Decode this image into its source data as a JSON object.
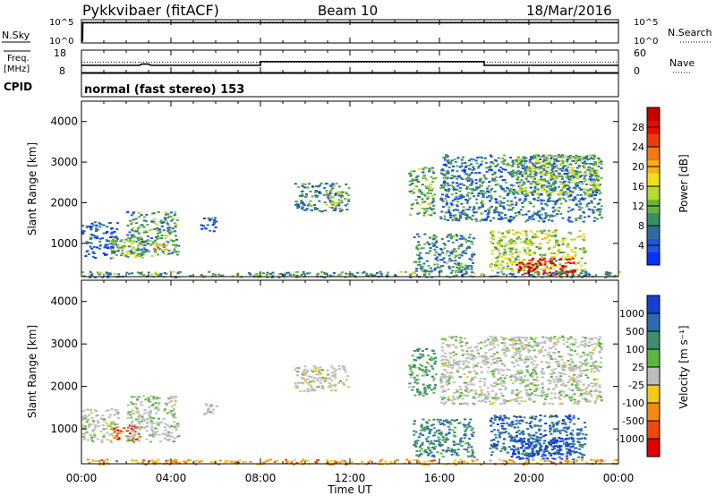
{
  "header": {
    "station": "Pykkvibaer (fitACF)",
    "beam": "Beam 10",
    "date": "18/Mar/2016"
  },
  "strip_labels": {
    "nsky": "N.Sky",
    "nsearch": "N.Search",
    "freq_line1": "Freq.",
    "freq_line2": "[MHz]",
    "nave": "Nave",
    "cpid": "CPID",
    "cpid_value": "normal (fast stereo) 153"
  },
  "noise_axis": {
    "left_ticks": [
      "10^5",
      "10^0"
    ],
    "right_ticks": [
      "10^5",
      "10^0"
    ]
  },
  "freq_axis": {
    "left_ticks": [
      "18",
      "8"
    ],
    "right_ticks": [
      "60",
      "0"
    ]
  },
  "chart_data": [
    {
      "type": "line",
      "name": "noise",
      "series": [
        {
          "name": "N.Sky",
          "style": "solid",
          "x_hours": [
            0,
            0.05,
            0.06,
            24
          ],
          "y_log10": [
            0,
            0,
            4.7,
            4.7
          ]
        },
        {
          "name": "N.Search",
          "style": "dotted",
          "x_hours": [
            0,
            24
          ],
          "y_log10": [
            4.6,
            4.6
          ]
        }
      ]
    },
    {
      "type": "line",
      "name": "frequency",
      "series": [
        {
          "name": "Freq",
          "unit": "MHz",
          "x_hours": [
            0,
            2.6,
            2.7,
            3.0,
            3.1,
            8.0,
            8.0,
            18.0,
            18.0,
            24
          ],
          "y": [
            10.5,
            10.5,
            11.2,
            11.2,
            10.5,
            10.5,
            12.6,
            12.6,
            10.5,
            10.5
          ]
        },
        {
          "name": "Nave",
          "style": "dotted",
          "x_hours": [
            0,
            24
          ],
          "y": [
            28,
            28
          ]
        }
      ]
    },
    {
      "type": "heatmap",
      "name": "power",
      "ylabel": "Slant Range [km]",
      "ylim": [
        180,
        4500
      ],
      "yticks": [
        "1000",
        "2000",
        "3000",
        "4000"
      ],
      "xticks": [
        "00:00",
        "04:00",
        "08:00",
        "12:00",
        "16:00",
        "20:00",
        "00:00"
      ],
      "colorbar": {
        "label": "Power [dB]",
        "ticks": [
          "4",
          "8",
          "12",
          "16",
          "20",
          "24",
          "28"
        ],
        "colors": [
          "#0033ff",
          "#2255dd",
          "#2f6e9a",
          "#3c9060",
          "#68b43c",
          "#b8d832",
          "#f0e020",
          "#f5b018",
          "#f07a14",
          "#ea3c0c",
          "#e01000",
          "#c80000"
        ]
      },
      "regions": [
        {
          "t": [
            0.0,
            1.6
          ],
          "r": [
            650,
            1550
          ],
          "level": 0.15
        },
        {
          "t": [
            1.3,
            2.8
          ],
          "r": [
            650,
            1150
          ],
          "level": 0.45
        },
        {
          "t": [
            2.0,
            4.3
          ],
          "r": [
            700,
            1800
          ],
          "level": 0.3
        },
        {
          "t": [
            3.2,
            3.9
          ],
          "r": [
            800,
            1000
          ],
          "level": 0.6
        },
        {
          "t": [
            5.3,
            6.0
          ],
          "r": [
            1300,
            1650
          ],
          "level": 0.12
        },
        {
          "t": [
            9.5,
            11.9
          ],
          "r": [
            1800,
            2500
          ],
          "level": 0.25
        },
        {
          "t": [
            10.8,
            11.6
          ],
          "r": [
            1900,
            2300
          ],
          "level": 0.5
        },
        {
          "t": [
            14.6,
            15.8
          ],
          "r": [
            1700,
            2900
          ],
          "level": 0.35
        },
        {
          "t": [
            14.8,
            17.5
          ],
          "r": [
            300,
            1250
          ],
          "level": 0.25
        },
        {
          "t": [
            16.0,
            23.2
          ],
          "r": [
            1550,
            3200
          ],
          "level": 0.22
        },
        {
          "t": [
            19.2,
            23.1
          ],
          "r": [
            2200,
            3200
          ],
          "level": 0.4
        },
        {
          "t": [
            18.2,
            22.5
          ],
          "r": [
            300,
            1350
          ],
          "level": 0.45
        },
        {
          "t": [
            19.4,
            22.0
          ],
          "r": [
            250,
            650
          ],
          "level": 0.95
        },
        {
          "t": [
            0.0,
            24.0
          ],
          "r": [
            180,
            320
          ],
          "level": 0.3
        }
      ]
    },
    {
      "type": "heatmap",
      "name": "velocity",
      "ylabel": "Slant Range [km]",
      "ylim": [
        180,
        4500
      ],
      "yticks": [
        "1000",
        "2000",
        "3000",
        "4000"
      ],
      "xticks": [
        "00:00",
        "04:00",
        "08:00",
        "12:00",
        "16:00",
        "20:00",
        "00:00"
      ],
      "xlabel": "Time UT",
      "colorbar": {
        "label": "Velocity [m s⁻¹]",
        "ticks": [
          "1000",
          "500",
          "100",
          "25",
          "-25",
          "-100",
          "-500",
          "-1000"
        ],
        "colors": [
          "#1a3fd0",
          "#2a6cb0",
          "#3d8e6a",
          "#5ab840",
          "#bdbdbd",
          "#f2c81a",
          "#f28a14",
          "#ea4a0c",
          "#e00000"
        ]
      },
      "regions": [
        {
          "t": [
            0.0,
            1.6
          ],
          "r": [
            700,
            1500
          ],
          "v": 0.0
        },
        {
          "t": [
            1.4,
            2.6
          ],
          "r": [
            700,
            1100
          ],
          "v": -0.7
        },
        {
          "t": [
            2.0,
            4.3
          ],
          "r": [
            700,
            1800
          ],
          "v": 0.05
        },
        {
          "t": [
            5.3,
            6.0
          ],
          "r": [
            1350,
            1650
          ],
          "v": 0.0
        },
        {
          "t": [
            9.5,
            11.9
          ],
          "r": [
            1900,
            2500
          ],
          "v": 0.0
        },
        {
          "t": [
            14.6,
            15.8
          ],
          "r": [
            1800,
            2900
          ],
          "v": 0.35
        },
        {
          "t": [
            14.8,
            17.5
          ],
          "r": [
            350,
            1250
          ],
          "v": 0.55
        },
        {
          "t": [
            16.0,
            23.2
          ],
          "r": [
            1600,
            3200
          ],
          "v": 0.05
        },
        {
          "t": [
            18.2,
            22.5
          ],
          "r": [
            350,
            1350
          ],
          "v": 0.7
        },
        {
          "t": [
            19.2,
            22.0
          ],
          "r": [
            300,
            800
          ],
          "v": 0.9
        },
        {
          "t": [
            0.0,
            24.0
          ],
          "r": [
            180,
            300
          ],
          "v": -0.4
        }
      ]
    }
  ]
}
